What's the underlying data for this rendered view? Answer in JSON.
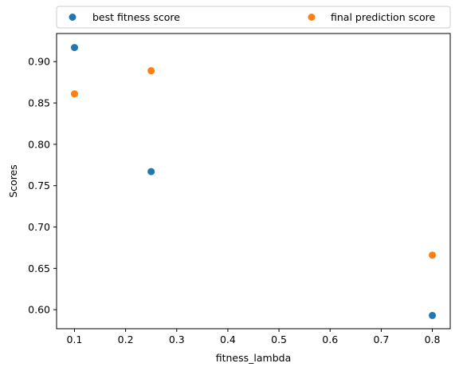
{
  "chart_data": {
    "type": "scatter",
    "title": "",
    "xlabel": "fitness_lambda",
    "ylabel": "Scores",
    "xlim": [
      0.065,
      0.835
    ],
    "ylim": [
      0.577,
      0.934
    ],
    "xticks": [
      0.1,
      0.2,
      0.3,
      0.4,
      0.5,
      0.6,
      0.7,
      0.8
    ],
    "xtick_labels": [
      "0.1",
      "0.2",
      "0.3",
      "0.4",
      "0.5",
      "0.6",
      "0.7",
      "0.8"
    ],
    "yticks": [
      0.6,
      0.65,
      0.7,
      0.75,
      0.8,
      0.85,
      0.9
    ],
    "ytick_labels": [
      "0.60",
      "0.65",
      "0.70",
      "0.75",
      "0.80",
      "0.85",
      "0.90"
    ],
    "grid": false,
    "legend_placement": "above plot, two columns",
    "series": [
      {
        "name": "best fitness score",
        "color": "#1f77b4",
        "x": [
          0.1,
          0.25,
          0.8
        ],
        "y": [
          0.917,
          0.767,
          0.593
        ]
      },
      {
        "name": "final prediction score",
        "color": "#ff7f0e",
        "x": [
          0.1,
          0.25,
          0.8
        ],
        "y": [
          0.861,
          0.889,
          0.666
        ]
      }
    ]
  }
}
